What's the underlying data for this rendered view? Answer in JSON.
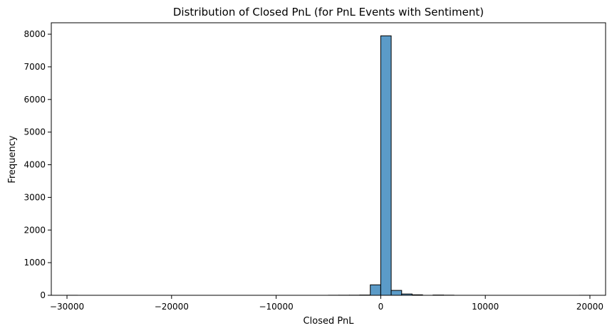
{
  "chart_data": {
    "type": "bar",
    "title": "Distribution of Closed PnL (for PnL Events with Sentiment)",
    "xlabel": "Closed PnL",
    "ylabel": "Frequency",
    "xlim": [
      -31500,
      21500
    ],
    "ylim": [
      0,
      8350
    ],
    "xticks": [
      -30000,
      -20000,
      -10000,
      0,
      10000,
      20000
    ],
    "xtick_labels": [
      "−30000",
      "−20000",
      "−10000",
      "0",
      "10000",
      "20000"
    ],
    "yticks": [
      0,
      1000,
      2000,
      3000,
      4000,
      5000,
      6000,
      7000,
      8000
    ],
    "ytick_labels": [
      "0",
      "1000",
      "2000",
      "3000",
      "4000",
      "5000",
      "6000",
      "7000",
      "8000"
    ],
    "bin_width": 1000,
    "bins": [
      {
        "x0": -30000,
        "x1": -29000,
        "count": 1
      },
      {
        "x0": -5000,
        "x1": -4000,
        "count": 2
      },
      {
        "x0": -4000,
        "x1": -3000,
        "count": 3
      },
      {
        "x0": -3000,
        "x1": -2000,
        "count": 4
      },
      {
        "x0": -2000,
        "x1": -1000,
        "count": 8
      },
      {
        "x0": -1000,
        "x1": 0,
        "count": 320
      },
      {
        "x0": 0,
        "x1": 1000,
        "count": 7950
      },
      {
        "x0": 1000,
        "x1": 2000,
        "count": 150
      },
      {
        "x0": 2000,
        "x1": 3000,
        "count": 40
      },
      {
        "x0": 3000,
        "x1": 4000,
        "count": 15
      },
      {
        "x0": 5000,
        "x1": 6000,
        "count": 8
      },
      {
        "x0": 6000,
        "x1": 7000,
        "count": 4
      },
      {
        "x0": 19000,
        "x1": 20000,
        "count": 1
      }
    ],
    "bar_color": "#5b9bc8",
    "edge_color": "#000000",
    "grid": false,
    "legend": "none"
  }
}
